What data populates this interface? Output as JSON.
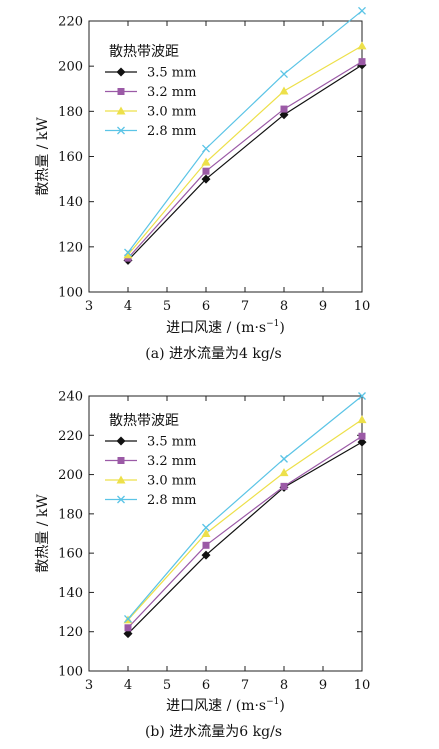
{
  "chart_data": [
    {
      "type": "line",
      "caption": "(a) 进水流量为4 kg/s",
      "xlabel": "进口风速 / (m·s",
      "xlabel_sup": "−1",
      "xlabel_end": ")",
      "ylabel": "散热量 / kW",
      "xlim": [
        3,
        10
      ],
      "ylim": [
        100,
        220
      ],
      "xticks": [
        3,
        4,
        5,
        6,
        7,
        8,
        9,
        10
      ],
      "yticks": [
        100,
        120,
        140,
        160,
        180,
        200,
        220
      ],
      "legend_title": "散热带波距",
      "legend_position": "top-left",
      "grid": false,
      "x": [
        4,
        6,
        8,
        10
      ],
      "series": [
        {
          "name": "3.5 mm",
          "values": [
            114,
            150,
            178.5,
            200.5
          ],
          "color": "#111111",
          "marker": "diamond"
        },
        {
          "name": "3.2 mm",
          "values": [
            115,
            153.5,
            181,
            202
          ],
          "color": "#9b5aa6",
          "marker": "square"
        },
        {
          "name": "3.0 mm",
          "values": [
            116.5,
            157.5,
            189,
            209
          ],
          "color": "#ede04a",
          "marker": "triangle"
        },
        {
          "name": "2.8 mm",
          "values": [
            117.5,
            163.5,
            196.5,
            224.5
          ],
          "color": "#5bc4e6",
          "marker": "x"
        }
      ]
    },
    {
      "type": "line",
      "caption": "(b) 进水流量为6 kg/s",
      "xlabel": "进口风速 / (m·s",
      "xlabel_sup": "−1",
      "xlabel_end": ")",
      "ylabel": "散热量 / kW",
      "xlim": [
        3,
        10
      ],
      "ylim": [
        100,
        240
      ],
      "xticks": [
        3,
        4,
        5,
        6,
        7,
        8,
        9,
        10
      ],
      "yticks": [
        100,
        120,
        140,
        160,
        180,
        200,
        220,
        240
      ],
      "legend_title": "散热带波距",
      "legend_position": "top-left",
      "grid": false,
      "x": [
        4,
        6,
        8,
        10
      ],
      "series": [
        {
          "name": "3.5 mm",
          "values": [
            119,
            159,
            193.5,
            216.5
          ],
          "color": "#111111",
          "marker": "diamond"
        },
        {
          "name": "3.2 mm",
          "values": [
            122,
            164,
            194,
            219.5
          ],
          "color": "#9b5aa6",
          "marker": "square"
        },
        {
          "name": "3.0 mm",
          "values": [
            126,
            170,
            201,
            228
          ],
          "color": "#ede04a",
          "marker": "triangle"
        },
        {
          "name": "2.8 mm",
          "values": [
            126.5,
            173,
            208,
            240
          ],
          "color": "#5bc4e6",
          "marker": "x"
        }
      ]
    }
  ]
}
